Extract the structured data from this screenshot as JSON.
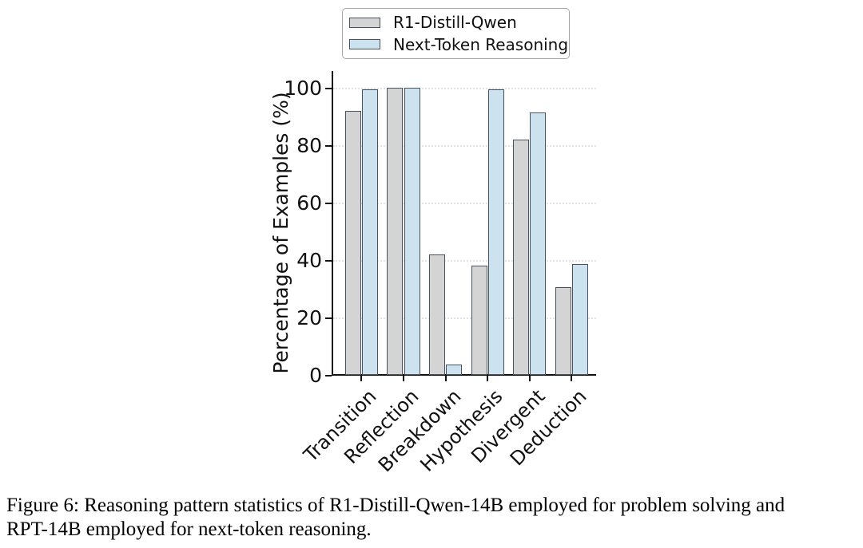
{
  "legend": {
    "items": [
      {
        "label": "R1-Distill-Qwen",
        "color": "#d4d4d4"
      },
      {
        "label": "Next-Token Reasoning",
        "color": "#cde2ef"
      }
    ]
  },
  "chart_data": {
    "type": "bar",
    "title": "",
    "categories": [
      "Transition",
      "Reflection",
      "Breakdown",
      "Hypothesis",
      "Divergent",
      "Deduction"
    ],
    "series": [
      {
        "name": "R1-Distill-Qwen",
        "color": "#d4d4d4",
        "values": [
          92,
          100,
          42,
          38,
          82,
          30.5
        ]
      },
      {
        "name": "Next-Token Reasoning",
        "color": "#cde2ef",
        "values": [
          99.5,
          100,
          3.5,
          99.5,
          91.5,
          38.5
        ]
      }
    ],
    "ylabel": "Percentage of Examples (%)",
    "xlabel": "",
    "yticks": [
      0,
      20,
      40,
      60,
      80,
      100
    ],
    "ylim": [
      0,
      106
    ],
    "grid": "horizontal-dotted",
    "legend_position": "top-center",
    "bar_edge_color": "#47525e"
  },
  "caption": {
    "lines": [
      "Figure 6: Reasoning pattern statistics of R1-Distill-Qwen-14B employed for problem solving and",
      "RPT-14B employed for next-token reasoning."
    ]
  }
}
